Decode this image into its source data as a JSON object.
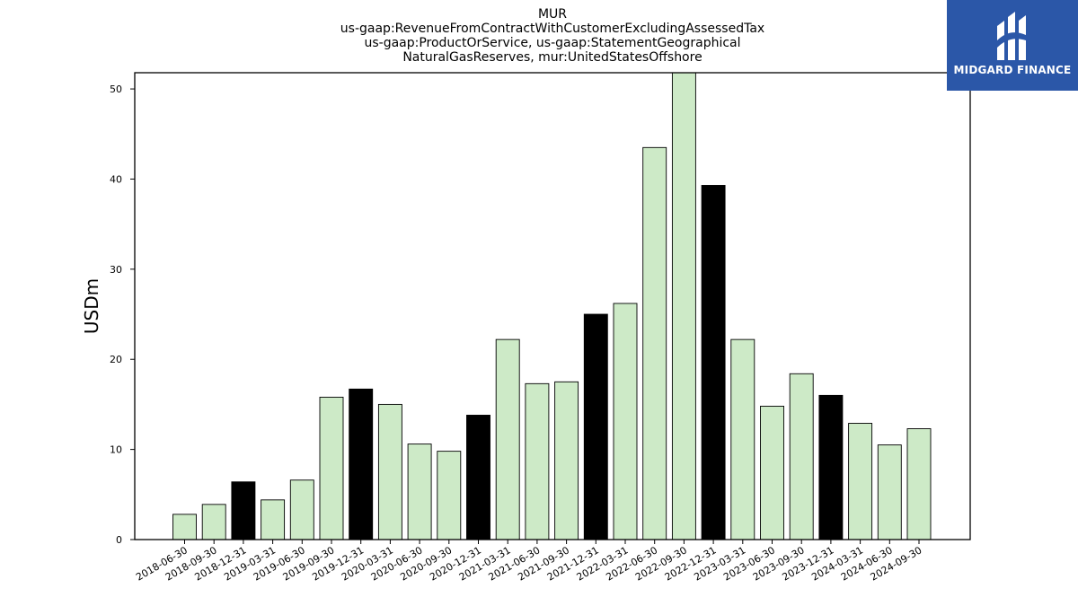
{
  "logo": {
    "text": "MIDGARD FINANCE",
    "bg_color": "#2b57a8"
  },
  "chart_data": {
    "type": "bar",
    "title_lines": [
      "MUR",
      "us-gaap:RevenueFromContractWithCustomerExcludingAssessedTax",
      "us-gaap:ProductOrService, us-gaap:StatementGeographical",
      "NaturalGasReserves, mur:UnitedStatesOffshore"
    ],
    "xlabel": "",
    "ylabel": "USDm",
    "ylim": [
      0,
      51.8
    ],
    "yticks": [
      0,
      10,
      20,
      30,
      40,
      50
    ],
    "grid": false,
    "legend": "none",
    "colors": {
      "regular": "#cdeac7",
      "annual": "#000000",
      "edge": "#000000"
    },
    "categories": [
      "2018-06-30",
      "2018-09-30",
      "2018-12-31",
      "2019-03-31",
      "2019-06-30",
      "2019-09-30",
      "2019-12-31",
      "2020-03-31",
      "2020-06-30",
      "2020-09-30",
      "2020-12-31",
      "2021-03-31",
      "2021-06-30",
      "2021-09-30",
      "2021-12-31",
      "2022-03-31",
      "2022-06-30",
      "2022-09-30",
      "2022-12-31",
      "2023-03-31",
      "2023-06-30",
      "2023-09-30",
      "2023-12-31",
      "2024-03-31",
      "2024-06-30",
      "2024-09-30"
    ],
    "values": [
      2.8,
      3.9,
      6.4,
      4.4,
      6.6,
      15.8,
      16.7,
      15.0,
      10.6,
      9.8,
      13.8,
      22.2,
      17.3,
      17.5,
      25.0,
      26.2,
      43.5,
      51.8,
      39.3,
      22.2,
      14.8,
      18.4,
      16.0,
      12.9,
      10.5,
      12.3
    ],
    "highlight": [
      false,
      false,
      true,
      false,
      false,
      false,
      true,
      false,
      false,
      false,
      true,
      false,
      false,
      false,
      true,
      false,
      false,
      false,
      true,
      false,
      false,
      false,
      true,
      false,
      false,
      false
    ]
  }
}
